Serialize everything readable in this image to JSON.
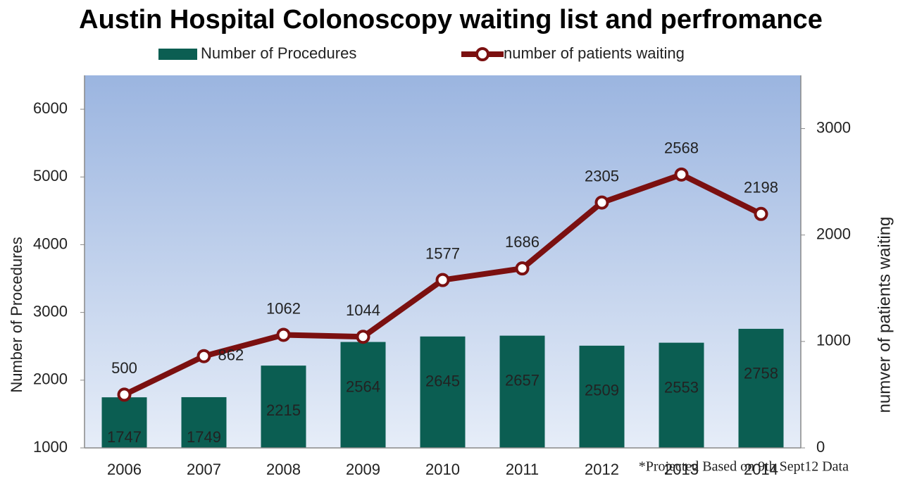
{
  "chart_data": {
    "type": "bar",
    "title": "Austin Hospital Colonoscopy waiting list and perfromance",
    "categories": [
      "2006",
      "2007",
      "2008",
      "2009",
      "2010",
      "2011",
      "2012",
      "2013",
      "2014"
    ],
    "series": [
      {
        "name": "Number of Procedures",
        "type": "bar",
        "axis": "y",
        "color": "#0b5e52",
        "values": [
          1747,
          1749,
          2215,
          2564,
          2645,
          2657,
          2509,
          2553,
          2758
        ]
      },
      {
        "name": "number of patients waiting",
        "type": "line",
        "axis": "y2",
        "color": "#7b1010",
        "values": [
          500,
          862,
          1062,
          1044,
          1577,
          1686,
          2305,
          2568,
          2198
        ]
      }
    ],
    "ylabel": "Number of Procedures",
    "y2label": "numver of patients waiting",
    "ylim": [
      1000,
      6500
    ],
    "yticks": [
      1000,
      2000,
      3000,
      4000,
      5000,
      6000
    ],
    "y2lim": [
      0,
      3500
    ],
    "y2ticks": [
      0,
      1000,
      2000,
      3000
    ],
    "note": "*Projected Based on 9th Sept12 Data",
    "legend": "top"
  }
}
